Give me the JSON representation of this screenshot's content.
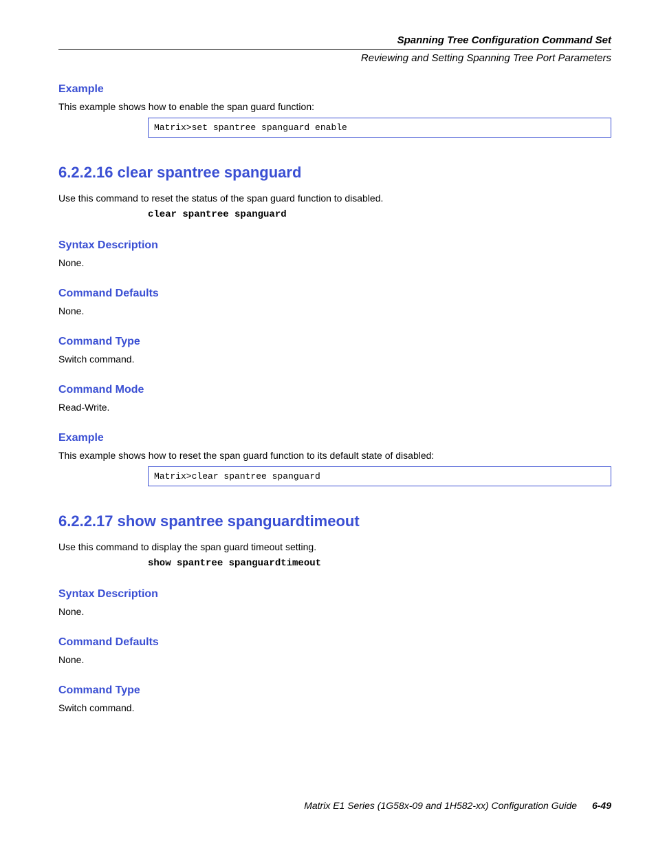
{
  "header": {
    "chapter_title": "Spanning Tree Configuration Command Set",
    "section_title": "Reviewing and Setting Spanning Tree Port Parameters"
  },
  "sec1": {
    "example_heading": "Example",
    "example_intro": "This example shows how to enable the span guard function:",
    "example_code": "Matrix>set spantree spanguard enable",
    "title": "6.2.2.16  clear spantree spanguard",
    "desc": "Use this command to reset the status of the span guard function to disabled.",
    "syntax_cmd": "clear spantree spanguard",
    "syntax_heading": "Syntax Description",
    "syntax_text": "None.",
    "defaults_heading": "Command Defaults",
    "defaults_text": "None.",
    "type_heading": "Command Type",
    "type_text": "Switch command.",
    "mode_heading": "Command Mode",
    "mode_text": "Read-Write.",
    "example2_heading": "Example",
    "example2_intro": "This example shows how to reset the span guard function to its default state of disabled:",
    "example2_code": "Matrix>clear spantree spanguard"
  },
  "sec2": {
    "title": "6.2.2.17  show spantree spanguardtimeout",
    "desc": "Use this command to display the span guard timeout setting.",
    "syntax_cmd": "show spantree spanguardtimeout",
    "syntax_heading": "Syntax Description",
    "syntax_text": "None.",
    "defaults_heading": "Command Defaults",
    "defaults_text": "None.",
    "type_heading": "Command Type",
    "type_text": "Switch command."
  },
  "footer": {
    "book": "Matrix E1 Series (1G58x-09 and 1H582-xx) Configuration Guide",
    "page": "6-49"
  },
  "colors": {
    "blue": "#3A4FD3",
    "text": "#000000",
    "background": "#ffffff"
  },
  "typography": {
    "body_font": "Arial",
    "code_font": "Courier New",
    "heading_size_pt": 16,
    "title_size_pt": 22,
    "body_size_pt": 14
  }
}
